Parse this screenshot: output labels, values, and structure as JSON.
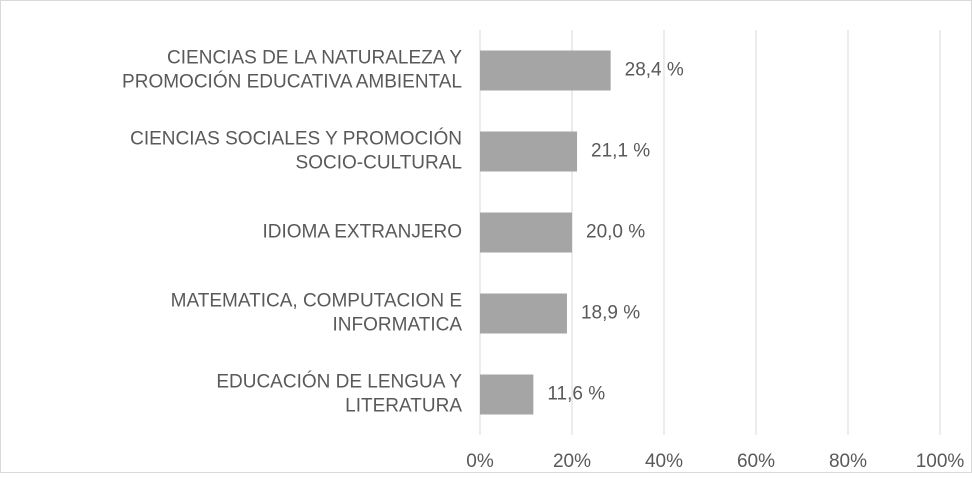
{
  "chart_data": {
    "type": "bar",
    "orientation": "horizontal",
    "categories": [
      [
        "CIENCIAS DE LA NATURALEZA Y",
        "PROMOCIÓN EDUCATIVA AMBIENTAL"
      ],
      [
        "CIENCIAS SOCIALES Y PROMOCIÓN",
        "SOCIO-CULTURAL"
      ],
      [
        "IDIOMA EXTRANJERO"
      ],
      [
        "MATEMATICA, COMPUTACION E",
        "INFORMATICA"
      ],
      [
        "EDUCACIÓN DE LENGUA Y",
        "LITERATURA"
      ]
    ],
    "values": [
      28.4,
      21.1,
      20.0,
      18.9,
      11.6
    ],
    "value_labels": [
      "28,4 %",
      "21,1 %",
      "20,0 %",
      "18,9 %",
      "11,6 %"
    ],
    "color": "#a5a5a5",
    "xlim": [
      0,
      100
    ],
    "xticks": [
      {
        "value": 0,
        "label": "0%"
      },
      {
        "value": 20,
        "label": "20%"
      },
      {
        "value": 40,
        "label": "40%"
      },
      {
        "value": 60,
        "label": "60%"
      },
      {
        "value": 80,
        "label": "80%"
      },
      {
        "value": 100,
        "label": "100%"
      }
    ],
    "grid": true
  }
}
